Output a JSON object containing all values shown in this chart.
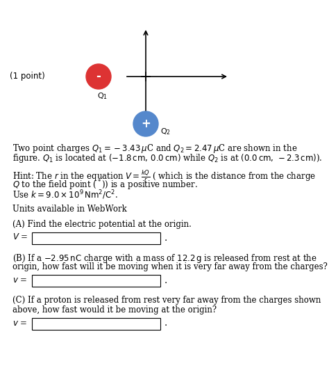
{
  "background_color": "#ffffff",
  "point_label": "(1 point)",
  "q1_color": "#dd3333",
  "q2_color": "#5588cc",
  "q1_sign": "-",
  "q2_sign": "+",
  "q1_label": "Q$_1$",
  "q2_label": "Q$_2$",
  "font_size_text": 8.5,
  "font_size_small": 7.5
}
